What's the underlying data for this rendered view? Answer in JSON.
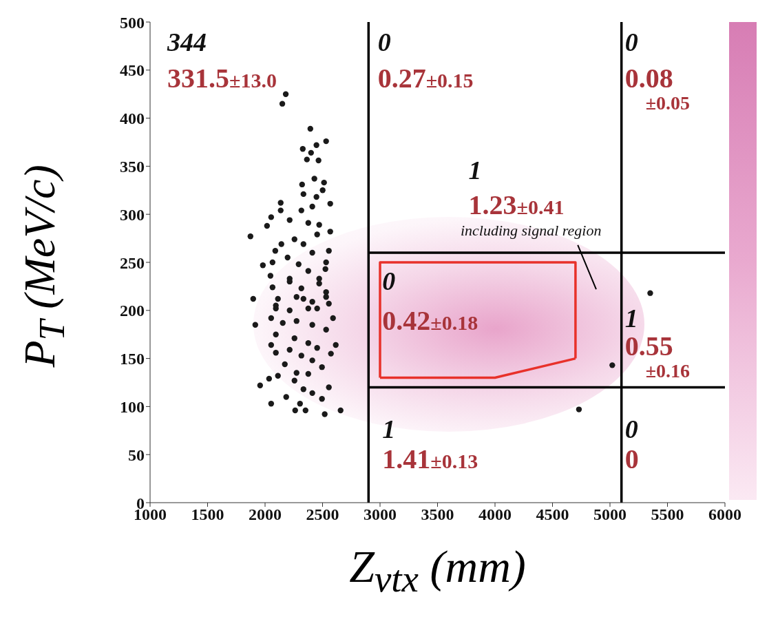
{
  "chart_data": {
    "type": "scatter",
    "xlabel": "Z$_{vtx}$ (mm)",
    "ylabel": "P$_{T}$ (MeV/c)",
    "xlim": [
      1000,
      6000
    ],
    "xticks": [
      1000,
      1500,
      2000,
      2500,
      3000,
      3500,
      4000,
      4500,
      5000,
      5500,
      6000
    ],
    "ylim": [
      0,
      500
    ],
    "yticks": [
      0,
      50,
      100,
      150,
      200,
      250,
      300,
      350,
      400,
      450,
      500
    ],
    "grid": false,
    "legend": false,
    "series": [
      {
        "marker": "circle",
        "color": "#1a1a1a",
        "x": [
          2180,
          2150,
          2394,
          2531,
          2447,
          2328,
          2400,
          2364,
          2465,
          2429,
          2322,
          2513,
          2501,
          2334,
          2447,
          2567,
          2136,
          2136,
          2411,
          2316,
          2053,
          2214,
          2017,
          2376,
          2471,
          2567,
          1873,
          2256,
          2453,
          2142,
          2089,
          2334,
          2411,
          2555,
          1981,
          2065,
          2196,
          2292,
          2531,
          2525,
          2047,
          2376,
          2214,
          2471,
          1897,
          2065,
          2316,
          2531,
          2112,
          2274,
          2411,
          2094,
          2214,
          2376,
          2555,
          2053,
          2591,
          2214,
          2471,
          2531,
          2334,
          2094,
          2453,
          1915,
          2274,
          2154,
          2411,
          2094,
          2531,
          2256,
          2615,
          2053,
          2376,
          2453,
          2214,
          2094,
          2573,
          2316,
          2411,
          2172,
          2495,
          2274,
          2112,
          2376,
          2035,
          1957,
          2256,
          2555,
          2334,
          2411,
          2184,
          2495,
          2053,
          2304,
          2262,
          2352,
          2519,
          2657,
          5350,
          5020,
          4730
        ],
        "values": [
          425,
          415,
          389,
          376,
          372,
          368,
          364,
          357,
          356,
          337,
          331,
          333,
          325,
          321,
          318,
          311,
          312,
          304,
          308,
          304,
          297,
          294,
          288,
          291,
          289,
          282,
          277,
          274,
          279,
          269,
          262,
          269,
          260,
          262,
          247,
          250,
          255,
          248,
          250,
          243,
          236,
          241,
          233,
          233,
          212,
          224,
          223,
          219,
          212,
          214,
          209,
          202,
          200,
          202,
          207,
          192,
          192,
          230,
          228,
          214,
          212,
          205,
          202,
          185,
          189,
          187,
          185,
          175,
          180,
          171,
          164,
          164,
          166,
          161,
          159,
          156,
          155,
          153,
          148,
          144,
          141,
          135,
          132,
          134,
          129,
          122,
          127,
          120,
          118,
          114,
          110,
          108,
          103,
          103,
          96,
          96,
          92,
          96,
          218,
          143,
          97
        ]
      },
      {
        "type": "line",
        "color": "#000000",
        "x": [
          2900,
          2900
        ],
        "values": [
          0,
          500
        ]
      },
      {
        "type": "line",
        "color": "#000000",
        "x": [
          5100,
          5100
        ],
        "values": [
          0,
          500
        ]
      },
      {
        "type": "line",
        "color": "#000000",
        "x": [
          2900,
          6000
        ],
        "values": [
          260,
          260
        ]
      },
      {
        "type": "line",
        "color": "#000000",
        "x": [
          2900,
          6000
        ],
        "values": [
          120,
          120
        ]
      },
      {
        "type": "line",
        "color": "#e8312a",
        "x": [
          3000,
          3000,
          4700,
          4700
        ],
        "values": [
          130,
          250,
          250,
          150
        ]
      },
      {
        "type": "line",
        "color": "#e8312a",
        "x": [
          3000,
          4000,
          4700
        ],
        "values": [
          130,
          130,
          150
        ]
      },
      {
        "type": "line",
        "color": "#000000",
        "x": [
          4720,
          4880
        ],
        "values": [
          268,
          222
        ]
      }
    ],
    "annotations": [
      "344",
      "331.5±13.0",
      "0",
      "0.27±0.15",
      "0",
      "0.08±0.05",
      "1",
      "1.23±0.41",
      "0",
      "0.42±0.18",
      "1",
      "0.55±0.16",
      "1",
      "1.41±0.13",
      "0",
      "0",
      "including signal region"
    ]
  }
}
